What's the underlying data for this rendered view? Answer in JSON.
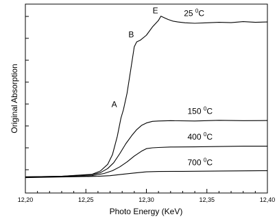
{
  "chart_data": {
    "type": "line",
    "xlabel": "Photo Energy (KeV)",
    "ylabel": "Original Absorption",
    "xlim": [
      12.2,
      12.4
    ],
    "ylim": [
      0,
      1
    ],
    "x_ticks": [
      "12,20",
      "12,25",
      "12,30",
      "12,35",
      "12,40"
    ],
    "x_tick_values": [
      12.2,
      12.25,
      12.3,
      12.35,
      12.4
    ],
    "y_ticks_labeled": false,
    "grid": false,
    "legend": "none",
    "series": [
      {
        "label": "25 °C",
        "line_color": "#000000",
        "x": [
          12.2,
          12.23,
          12.255,
          12.262,
          12.268,
          12.272,
          12.276,
          12.279,
          12.281,
          12.284,
          12.287,
          12.29,
          12.292,
          12.295,
          12.3,
          12.305,
          12.31,
          12.312,
          12.315,
          12.318,
          12.322,
          12.326,
          12.332,
          12.34,
          12.35,
          12.36,
          12.37,
          12.38,
          12.39,
          12.4
        ],
        "y": [
          0.015,
          0.018,
          0.03,
          0.05,
          0.09,
          0.15,
          0.26,
          0.37,
          0.42,
          0.52,
          0.66,
          0.8,
          0.83,
          0.84,
          0.87,
          0.92,
          0.96,
          0.985,
          0.975,
          0.965,
          0.955,
          0.95,
          0.945,
          0.942,
          0.945,
          0.948,
          0.946,
          0.952,
          0.948,
          0.95
        ]
      },
      {
        "label": "150 °C",
        "line_color": "#000000",
        "x": [
          12.2,
          12.23,
          12.255,
          12.262,
          12.268,
          12.273,
          12.278,
          12.283,
          12.288,
          12.292,
          12.296,
          12.3,
          12.305,
          12.31,
          12.32,
          12.34,
          12.36,
          12.38,
          12.4
        ],
        "y": [
          0.015,
          0.018,
          0.028,
          0.04,
          0.065,
          0.1,
          0.155,
          0.215,
          0.265,
          0.3,
          0.325,
          0.34,
          0.35,
          0.352,
          0.354,
          0.352,
          0.356,
          0.354,
          0.355
        ]
      },
      {
        "label": "400 °C",
        "line_color": "#000000",
        "x": [
          12.2,
          12.23,
          12.255,
          12.265,
          12.272,
          12.278,
          12.284,
          12.29,
          12.296,
          12.3,
          12.305,
          12.31,
          12.32,
          12.34,
          12.36,
          12.38,
          12.4
        ],
        "y": [
          0.012,
          0.016,
          0.022,
          0.035,
          0.052,
          0.075,
          0.105,
          0.14,
          0.17,
          0.185,
          0.19,
          0.192,
          0.195,
          0.196,
          0.198,
          0.2,
          0.2
        ]
      },
      {
        "label": "700 °C",
        "line_color": "#000000",
        "x": [
          12.2,
          12.23,
          12.26,
          12.27,
          12.28,
          12.29,
          12.3,
          12.31,
          12.33,
          12.36,
          12.4
        ],
        "y": [
          0.01,
          0.014,
          0.018,
          0.022,
          0.03,
          0.038,
          0.045,
          0.047,
          0.048,
          0.05,
          0.052
        ]
      }
    ],
    "peak_labels": [
      {
        "text": "A",
        "x": 12.278,
        "y": 0.42
      },
      {
        "text": "B",
        "x": 12.292,
        "y": 0.84
      },
      {
        "text": "E",
        "x": 12.312,
        "y": 0.985
      }
    ],
    "curve_labels": [
      {
        "num": "25",
        "deg": "0",
        "unit": "C",
        "series": 0,
        "x": 12.331,
        "y": 0.985
      },
      {
        "num": "150",
        "deg": "0",
        "unit": "C",
        "series": 1,
        "x": 12.334,
        "y": 0.395
      },
      {
        "num": "400",
        "deg": "0",
        "unit": "C",
        "series": 2,
        "x": 12.334,
        "y": 0.24
      },
      {
        "num": "700",
        "deg": "0",
        "unit": "C",
        "series": 3,
        "x": 12.334,
        "y": 0.085
      }
    ]
  }
}
